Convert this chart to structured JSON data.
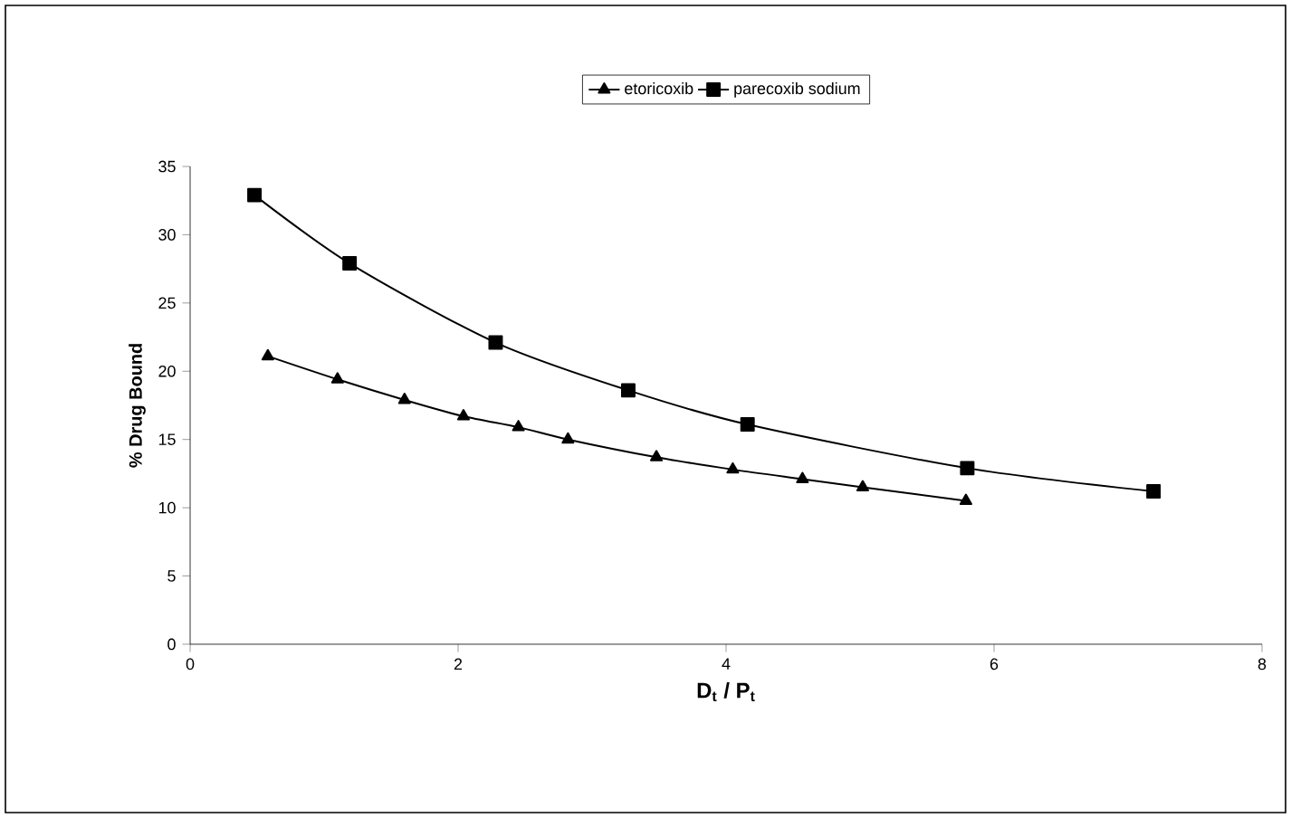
{
  "chart_data": {
    "type": "line",
    "xlabel": "D$_{t}$ / P$_{t}$",
    "ylabel": "% Drug Bound",
    "xlim": [
      0,
      8
    ],
    "ylim": [
      0,
      35
    ],
    "xticks": [
      0,
      2,
      4,
      6,
      8
    ],
    "yticks": [
      0,
      5,
      10,
      15,
      20,
      25,
      30,
      35
    ],
    "grid": false,
    "legend": "top",
    "series": [
      {
        "name": "etoricoxib",
        "color": "#000000",
        "marker": "triangle",
        "x": [
          0.58,
          1.1,
          1.6,
          2.04,
          2.45,
          2.82,
          3.48,
          4.05,
          4.57,
          5.02,
          5.79
        ],
        "values": [
          21.1,
          19.4,
          17.9,
          16.7,
          15.9,
          15.0,
          13.7,
          12.8,
          12.1,
          11.5,
          10.5
        ]
      },
      {
        "name": "parecoxib sodium",
        "color": "#000000",
        "marker": "square",
        "x": [
          0.48,
          1.19,
          2.28,
          3.27,
          4.16,
          5.8,
          7.19
        ],
        "values": [
          32.9,
          27.9,
          22.1,
          18.6,
          16.1,
          12.9,
          11.2
        ]
      }
    ]
  }
}
